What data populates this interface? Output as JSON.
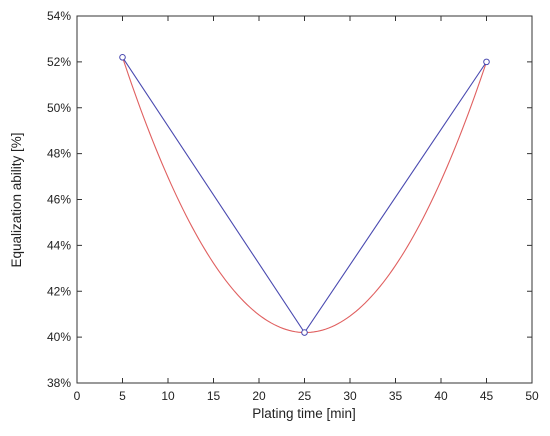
{
  "chart_data": {
    "type": "line",
    "title": "",
    "xlabel": "Plating time [min]",
    "ylabel": "Equalization ability [%]",
    "xlim": [
      0,
      50
    ],
    "ylim": [
      38,
      54
    ],
    "x_ticks": [
      0,
      5,
      10,
      15,
      20,
      25,
      30,
      35,
      40,
      45,
      50
    ],
    "y_ticks": [
      38,
      40,
      42,
      44,
      46,
      48,
      50,
      52,
      54
    ],
    "y_tick_suffix": "%",
    "grid": false,
    "legend": "none",
    "series": [
      {
        "kind": "measured",
        "color": "#4a4ab0",
        "marker": "open-circle",
        "x": [
          5,
          25,
          45
        ],
        "y": [
          52.2,
          40.2,
          52.0
        ]
      },
      {
        "kind": "quadratic-fit",
        "color": "#e06060",
        "marker": "none",
        "x": [
          5,
          25,
          45
        ],
        "y": [
          52.2,
          40.2,
          52.0
        ]
      }
    ]
  }
}
